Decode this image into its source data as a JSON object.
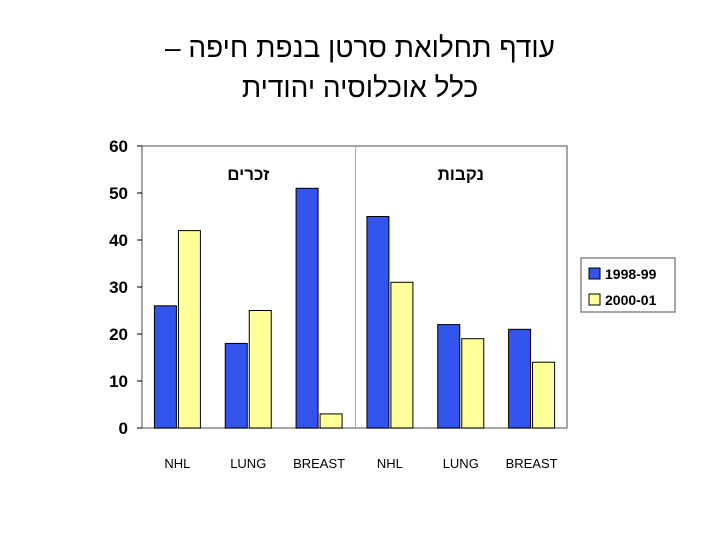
{
  "title": {
    "line1": "עודף תחלואת סרטן בנפת חיפה –",
    "line2": "כלל אוכלוסיה יהודית"
  },
  "colors": {
    "series1": "#3355ee",
    "series2": "#ffff99",
    "divider": "#aaaaaa",
    "frame": "#888888"
  },
  "chart_data": {
    "type": "bar",
    "categories": [
      "NHL",
      "LUNG",
      "BREAST",
      "NHL",
      "LUNG",
      "BREAST"
    ],
    "groups": [
      {
        "label": "זכרים",
        "categories": [
          0,
          1,
          2
        ]
      },
      {
        "label": "נקבות",
        "categories": [
          3,
          4,
          5
        ]
      }
    ],
    "series": [
      {
        "name": "1998-99",
        "values": [
          26,
          18,
          51,
          45,
          22,
          21
        ]
      },
      {
        "name": "2000-01",
        "values": [
          42,
          25,
          3,
          31,
          19,
          14
        ]
      }
    ],
    "ylim": [
      0,
      60
    ],
    "yticks": [
      0,
      10,
      20,
      30,
      40,
      50,
      60
    ],
    "grid": false,
    "legend": "right"
  }
}
